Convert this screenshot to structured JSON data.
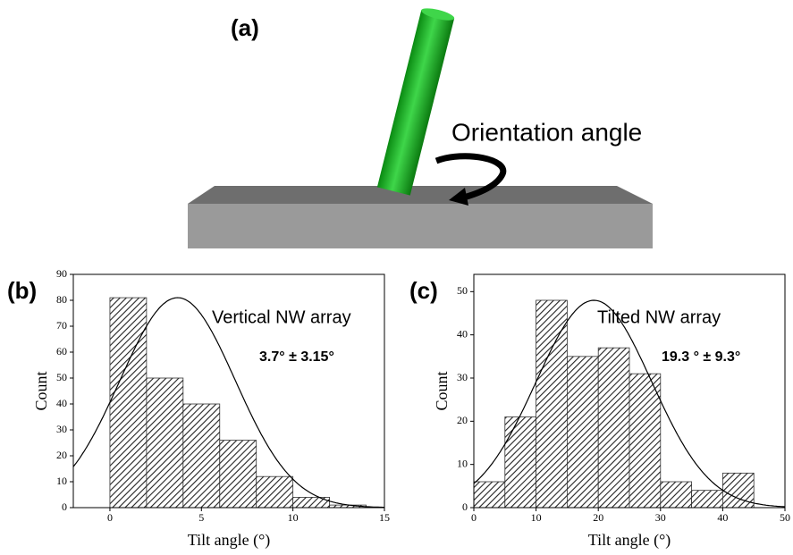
{
  "illustration": {
    "panel_label": "(a)",
    "annotation": "Orientation angle"
  },
  "chart_data": [
    {
      "type": "histogram",
      "panel_label": "(b)",
      "title": "Vertical NW array",
      "fit_label": "3.7° ± 3.15°",
      "x_label": "Tilt angle (°)",
      "y_label": "Count",
      "bins": [
        0,
        2,
        4,
        6,
        8,
        10,
        12,
        14
      ],
      "values": [
        81,
        50,
        40,
        26,
        12,
        4,
        1
      ],
      "fit": {
        "mean": 3.7,
        "sd": 3.15,
        "peak": 81
      },
      "xlim": [
        -2,
        15
      ],
      "xticks": [
        0,
        5,
        10,
        15
      ],
      "ylim": [
        0,
        90
      ],
      "yticks": [
        0,
        10,
        20,
        30,
        40,
        50,
        60,
        70,
        80,
        90
      ]
    },
    {
      "type": "histogram",
      "panel_label": "(c)",
      "title": "Tilted NW array",
      "fit_label": "19.3 ° ± 9.3°",
      "x_label": "Tilt angle (°)",
      "y_label": "Count",
      "bins": [
        0,
        5,
        10,
        15,
        20,
        25,
        30,
        35,
        40,
        45
      ],
      "values": [
        6,
        21,
        48,
        35,
        37,
        31,
        6,
        4,
        8
      ],
      "fit": {
        "mean": 19.3,
        "sd": 9.3,
        "peak": 48
      },
      "xlim": [
        0,
        50
      ],
      "xticks": [
        0,
        10,
        20,
        30,
        40,
        50
      ],
      "ylim": [
        0,
        54
      ],
      "yticks": [
        0,
        10,
        20,
        30,
        40,
        50
      ]
    }
  ]
}
